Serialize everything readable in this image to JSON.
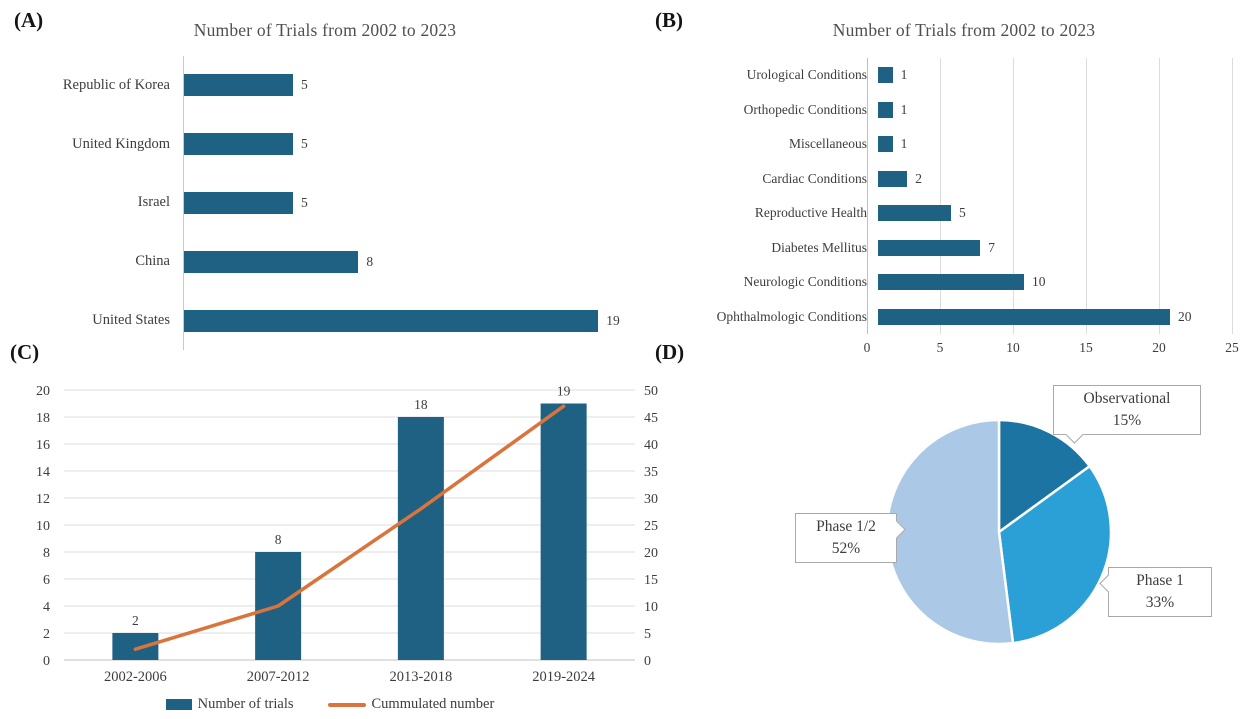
{
  "figure": {
    "panel_tags": {
      "a": "(A)",
      "b": "(B)",
      "c": "(C)",
      "d": "(D)"
    }
  },
  "colors": {
    "bar_teal": "#1f6183",
    "line_orange": "#d9743c",
    "pie_slice_colors": [
      "#1b74a1",
      "#2ba0d6",
      "#abc8e6"
    ],
    "gridline": "#dcdcdc",
    "zero_line": "#c0c0c0",
    "axis_line": "#c9c9c9",
    "text_dark": "#3d3d3d",
    "title_gray": "#4f4f4f",
    "callout_border": "#a9a9a9",
    "background": "#ffffff"
  },
  "chart_data": [
    {
      "id": "A",
      "type": "bar",
      "orientation": "horizontal",
      "title": "Number of Trials from 2002 to 2023",
      "categories": [
        "Republic of Korea",
        "United Kingdom",
        "Israel",
        "China",
        "United States"
      ],
      "values": [
        5,
        5,
        5,
        8,
        19
      ],
      "data_labels": [
        "5",
        "5",
        "5",
        "8",
        "19"
      ],
      "xlim": [
        0,
        21
      ],
      "grid": false,
      "legend_position": "none"
    },
    {
      "id": "B",
      "type": "bar",
      "orientation": "horizontal",
      "title": "Number of Trials from 2002 to 2023",
      "categories": [
        "Urological Conditions",
        "Orthopedic Conditions",
        "Miscellaneous",
        "Cardiac Conditions",
        "Reproductive Health",
        "Diabetes Mellitus",
        "Neurologic Conditions",
        "Ophthalmologic Conditions"
      ],
      "values": [
        1,
        1,
        1,
        2,
        5,
        7,
        10,
        20
      ],
      "data_labels": [
        "1",
        "1",
        "1",
        "2",
        "5",
        "7",
        "10",
        "20"
      ],
      "x_ticks": [
        0,
        5,
        10,
        15,
        20,
        25
      ],
      "xlim": [
        0,
        25
      ],
      "grid": true,
      "legend_position": "none"
    },
    {
      "id": "C",
      "type": "bar+line",
      "categories": [
        "2002-2006",
        "2007-2012",
        "2013-2018",
        "2019-2024"
      ],
      "series": [
        {
          "name": "Number of trials",
          "type": "bar",
          "axis": "left",
          "values": [
            2,
            8,
            18,
            19
          ],
          "data_labels": [
            "2",
            "8",
            "18",
            "19"
          ]
        },
        {
          "name": "Cummulated number",
          "type": "line",
          "axis": "right",
          "values": [
            2,
            10,
            28,
            47
          ]
        }
      ],
      "left_axis": {
        "min": 0,
        "max": 20,
        "step": 2,
        "ticks": [
          0,
          2,
          4,
          6,
          8,
          10,
          12,
          14,
          16,
          18,
          20
        ]
      },
      "right_axis": {
        "min": 0,
        "max": 50,
        "step": 5,
        "ticks": [
          0,
          5,
          10,
          15,
          20,
          25,
          30,
          35,
          40,
          45,
          50
        ]
      },
      "grid": true,
      "legend_position": "bottom"
    },
    {
      "id": "D",
      "type": "pie",
      "start_angle_deg": 0,
      "direction": "clockwise",
      "slices": [
        {
          "label": "Observational",
          "pct": 15,
          "pct_label": "15%"
        },
        {
          "label": "Phase 1",
          "pct": 33,
          "pct_label": "33%"
        },
        {
          "label": "Phase 1/2",
          "pct": 52,
          "pct_label": "52%"
        }
      ]
    }
  ]
}
